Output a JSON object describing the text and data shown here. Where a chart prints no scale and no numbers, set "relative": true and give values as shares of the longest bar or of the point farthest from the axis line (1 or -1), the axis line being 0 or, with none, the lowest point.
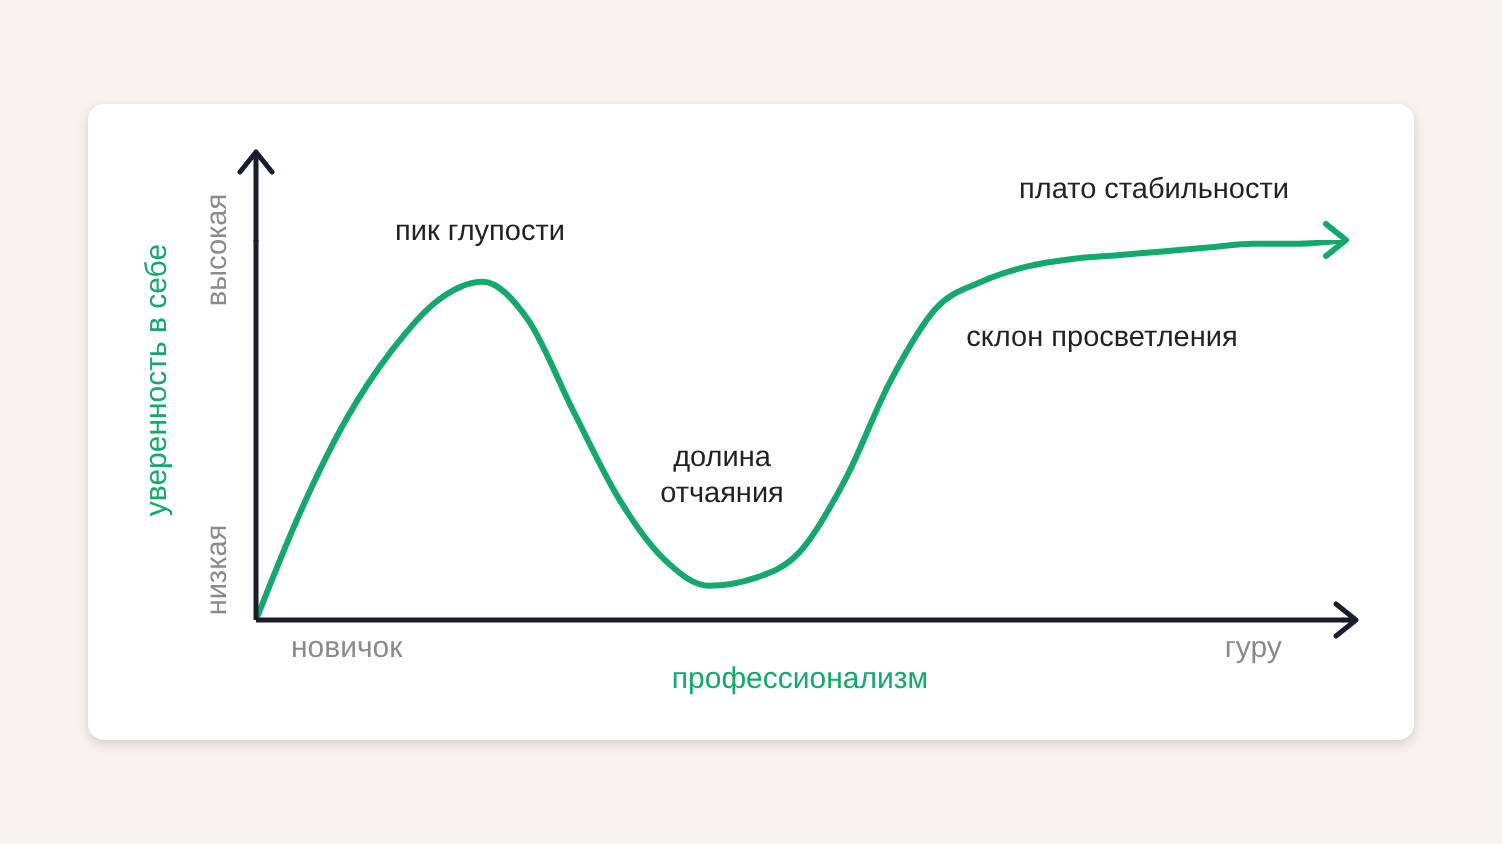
{
  "chart_data": {
    "type": "line",
    "relative": true,
    "xlabel": "профессионализм",
    "ylabel": "уверенность в себе",
    "categories": [
      null,
      null,
      "новичок",
      null,
      null,
      null,
      null,
      null,
      null,
      null,
      null,
      null,
      null,
      null,
      null,
      null,
      null,
      null,
      null,
      null,
      null,
      null,
      "гуру",
      null,
      null
    ],
    "series": [
      {
        "color": "#14a86c",
        "values": [
          0,
          0.29,
          0.53,
          0.71,
          0.84,
          0.89,
          0.79,
          0.55,
          0.32,
          0.16,
          0.09,
          0.11,
          0.18,
          0.37,
          0.63,
          0.82,
          0.89,
          0.93,
          0.95,
          0.96,
          0.97,
          0.98,
          0.99,
          0.99,
          1
        ]
      }
    ],
    "annotations": [
      "пик глупости",
      "долина отчаяния",
      "склон просветления",
      "плато стабильности",
      "низкая",
      "высокая"
    ],
    "marker": "none",
    "line_style": "solid"
  }
}
